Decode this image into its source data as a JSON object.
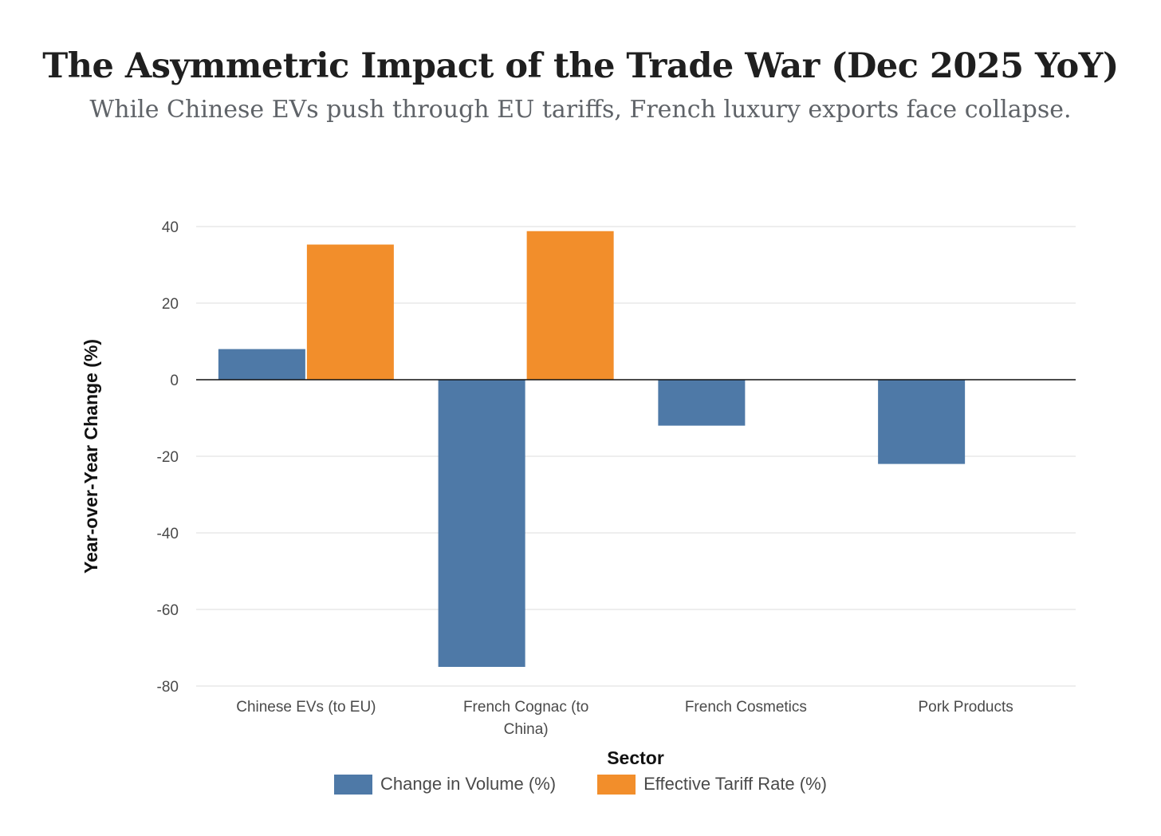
{
  "chart_data": {
    "type": "bar",
    "title": "The Asymmetric Impact of the Trade War (Dec 2025 YoY)",
    "subtitle": "While Chinese EVs push through EU tariffs, French luxury exports face collapse.",
    "xlabel": "Sector",
    "ylabel": "Year-over-Year Change (%)",
    "categories": [
      [
        "Chinese EVs (to EU)"
      ],
      [
        "French Cognac (to",
        "China)"
      ],
      [
        "French Cosmetics"
      ],
      [
        "Pork Products"
      ]
    ],
    "series": [
      {
        "name": "Change in Volume (%)",
        "color": "#4e79a7",
        "values": [
          8,
          -75,
          -12,
          -22
        ]
      },
      {
        "name": "Effective Tariff Rate (%)",
        "color": "#f28e2b",
        "values": [
          35.3,
          38.8,
          null,
          null
        ]
      }
    ],
    "ylim": [
      -80,
      40
    ],
    "yticks": [
      40,
      20,
      0,
      -20,
      -40,
      -60,
      -80
    ],
    "grid": true,
    "legend_position": "bottom-center"
  }
}
